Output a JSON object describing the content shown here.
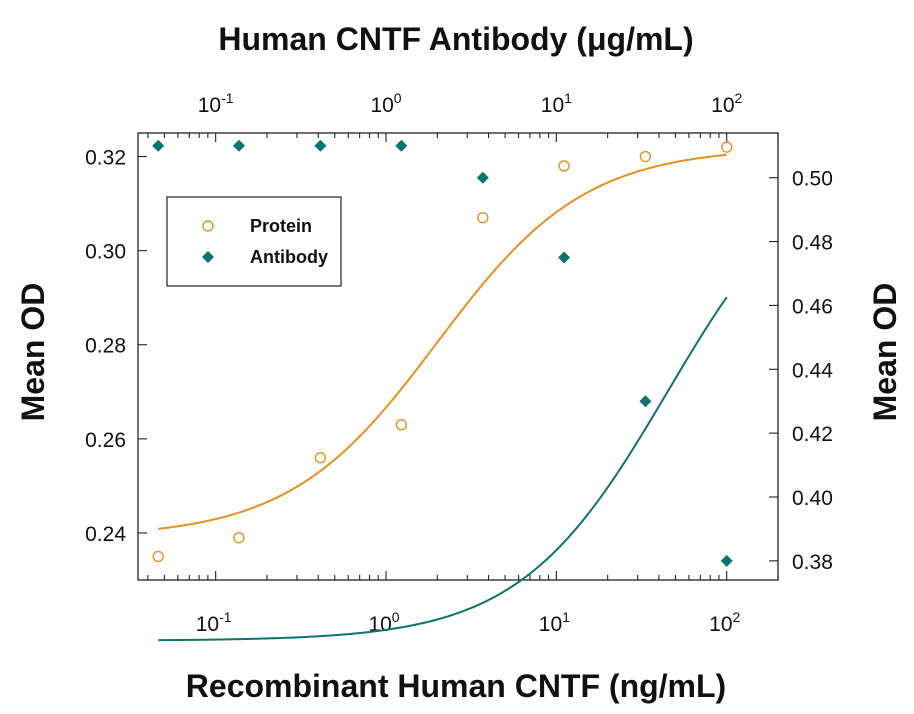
{
  "chart_data": {
    "type": "scatter",
    "title": "Human CNTF Antibody (μg/mL)",
    "xlabel": "Recombinant Human CNTF (ng/mL)",
    "ylabel_left": "Mean OD",
    "ylabel_right": "Mean OD",
    "x_scale": "log",
    "x_axis_bottom": {
      "range": [
        0.035,
        200
      ],
      "ticks": [
        0.1,
        1,
        10,
        100
      ],
      "tick_labels": [
        "10-1",
        "100",
        "101",
        "102"
      ]
    },
    "x_axis_top": {
      "range": [
        0.035,
        200
      ],
      "ticks": [
        0.1,
        1,
        10,
        100
      ],
      "tick_labels": [
        "10-1",
        "100",
        "101",
        "102"
      ]
    },
    "y_axis_left": {
      "range": [
        0.23,
        0.325
      ],
      "ticks": [
        0.24,
        0.26,
        0.28,
        0.3,
        0.32
      ],
      "tick_labels": [
        "0.24",
        "0.26",
        "0.28",
        "0.30",
        "0.32"
      ]
    },
    "y_axis_right": {
      "range": [
        0.374,
        0.514
      ],
      "ticks": [
        0.38,
        0.4,
        0.42,
        0.44,
        0.46,
        0.48,
        0.5
      ],
      "tick_labels": [
        "0.38",
        "0.40",
        "0.42",
        "0.44",
        "0.46",
        "0.48",
        "0.50"
      ]
    },
    "legend": {
      "position": "top-left",
      "items": [
        "Protein",
        "Antibody"
      ]
    },
    "grid": false,
    "series": [
      {
        "name": "Protein",
        "marker": "open-circle",
        "color": "#E8901E",
        "axis": "left-bottom",
        "x": [
          0.046,
          0.137,
          0.412,
          1.23,
          3.7,
          11.1,
          33.3,
          100
        ],
        "y": [
          0.235,
          0.239,
          0.256,
          0.263,
          0.307,
          0.318,
          0.32,
          0.322
        ],
        "fit": {
          "bottom": 0.239,
          "top": 0.322,
          "ec50": 2.0,
          "hill": 1.0
        }
      },
      {
        "name": "Antibody",
        "marker": "filled-diamond",
        "color": "#0E7271",
        "axis": "right-top",
        "x": [
          0.046,
          0.137,
          0.412,
          1.23,
          3.7,
          11.1,
          33.3,
          100
        ],
        "y": [
          0.51,
          0.51,
          0.51,
          0.51,
          0.5,
          0.475,
          0.43,
          0.38
        ],
        "fit": {
          "top": 0.511,
          "bottom": 0.355,
          "ec50": 45,
          "hill": 1.0
        }
      }
    ]
  }
}
